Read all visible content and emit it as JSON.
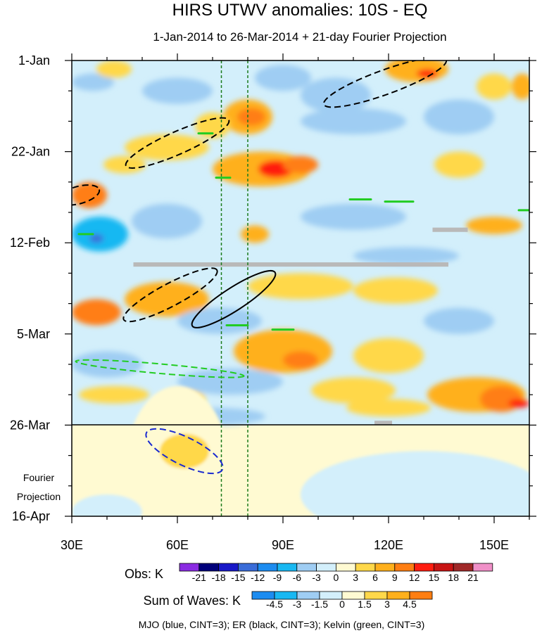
{
  "chart_data": {
    "type": "heatmap",
    "title": "HIRS UTWV anomalies: 10S - EQ",
    "subtitle": "1-Jan-2014 to 26-Mar-2014 + 21-day Fourier Projection",
    "x_axis": {
      "range": [
        30,
        160
      ],
      "units": "degrees_east",
      "ticks": [
        30,
        60,
        90,
        120,
        150
      ],
      "tick_labels": [
        "30E",
        "60E",
        "90E",
        "120E",
        "150E"
      ]
    },
    "y_axis": {
      "range_days": [
        0,
        105
      ],
      "reversed": true,
      "ticks_days": [
        0,
        21,
        42,
        63,
        84,
        105
      ],
      "tick_labels": [
        "1-Jan",
        "22-Jan",
        "12-Feb",
        "5-Mar",
        "26-Mar",
        "16-Apr"
      ],
      "projection_start_day": 84,
      "projection_label_line1": "Fourier",
      "projection_label_line2": "Projection"
    },
    "reference_lines_lon": [
      72.5,
      80
    ],
    "obs_colorbar": {
      "label": "Obs: K",
      "levels": [
        -21,
        -18,
        -15,
        -12,
        -9,
        -6,
        -3,
        0,
        3,
        6,
        9,
        12,
        15,
        18,
        21
      ],
      "colors": [
        "#8a2be2",
        "#00007a",
        "#1818c8",
        "#3a6cd8",
        "#1c8cf0",
        "#19b8f2",
        "#9fcdf3",
        "#d3effb",
        "#fffad2",
        "#ffd84a",
        "#ffb01c",
        "#ff7e12",
        "#ff1d10",
        "#c81414",
        "#a02828",
        "#f090c8"
      ]
    },
    "waves_colorbar": {
      "label": "Sum of Waves: K",
      "levels": [
        -4.5,
        -3,
        -1.5,
        0,
        1.5,
        3,
        4.5
      ],
      "colors": [
        "#1c8cf0",
        "#19b8f2",
        "#9fcdf3",
        "#d3effb",
        "#fffad2",
        "#ffd84a",
        "#ffb01c",
        "#ff7e12"
      ]
    },
    "obs_blobs": [
      {
        "lon": 36,
        "day": 5,
        "rlon": 6,
        "rday": 2,
        "value": -6
      },
      {
        "lon": 42,
        "day": 2,
        "rlon": 5,
        "rday": 2,
        "value": 4
      },
      {
        "lon": 60,
        "day": 7,
        "rlon": 10,
        "rday": 3,
        "value": -4
      },
      {
        "lon": 90,
        "day": 4,
        "rlon": 8,
        "rday": 3,
        "value": -4
      },
      {
        "lon": 105,
        "day": 8,
        "rlon": 10,
        "rday": 4,
        "value": -4
      },
      {
        "lon": 128,
        "day": 2,
        "rlon": 9,
        "rday": 3,
        "value": 7
      },
      {
        "lon": 131,
        "day": 3,
        "rlon": 3,
        "rday": 1,
        "value": 13
      },
      {
        "lon": 150,
        "day": 6,
        "rlon": 5,
        "rday": 3,
        "value": 4
      },
      {
        "lon": 158,
        "day": 6,
        "rlon": 3,
        "rday": 3,
        "value": 7
      },
      {
        "lon": 80,
        "day": 13,
        "rlon": 7,
        "rday": 4,
        "value": 6
      },
      {
        "lon": 81,
        "day": 13,
        "rlon": 4,
        "rday": 2,
        "value": 10
      },
      {
        "lon": 70,
        "day": 15,
        "rlon": 5,
        "rday": 3,
        "value": 4
      },
      {
        "lon": 110,
        "day": 14,
        "rlon": 15,
        "rday": 3,
        "value": -4
      },
      {
        "lon": 140,
        "day": 13,
        "rlon": 10,
        "rday": 4,
        "value": -4
      },
      {
        "lon": 57,
        "day": 20,
        "rlon": 12,
        "rday": 3,
        "value": 4
      },
      {
        "lon": 45,
        "day": 24,
        "rlon": 6,
        "rday": 2,
        "value": 4
      },
      {
        "lon": 84,
        "day": 25,
        "rlon": 14,
        "rday": 4,
        "value": 7
      },
      {
        "lon": 88,
        "day": 25,
        "rlon": 5,
        "rday": 2,
        "value": 13
      },
      {
        "lon": 95,
        "day": 24,
        "rlon": 5,
        "rday": 2,
        "value": 10
      },
      {
        "lon": 140,
        "day": 24,
        "rlon": 7,
        "rday": 3,
        "value": 4
      },
      {
        "lon": 35,
        "day": 31,
        "rlon": 5,
        "rday": 3,
        "value": 10
      },
      {
        "lon": 38,
        "day": 40,
        "rlon": 8,
        "rday": 4,
        "value": -9
      },
      {
        "lon": 37,
        "day": 41,
        "rlon": 2,
        "rday": 1,
        "value": -15
      },
      {
        "lon": 57,
        "day": 37,
        "rlon": 10,
        "rday": 4,
        "value": -5
      },
      {
        "lon": 110,
        "day": 36,
        "rlon": 15,
        "rday": 3,
        "value": -4
      },
      {
        "lon": 82,
        "day": 40,
        "rlon": 4,
        "rday": 2,
        "value": 6
      },
      {
        "lon": 150,
        "day": 38,
        "rlon": 8,
        "rday": 2,
        "value": 6
      },
      {
        "lon": 125,
        "day": 45,
        "rlon": 15,
        "rday": 2,
        "value": -4
      },
      {
        "lon": 57,
        "day": 55,
        "rlon": 12,
        "rday": 4,
        "value": 6
      },
      {
        "lon": 37,
        "day": 58,
        "rlon": 7,
        "rday": 3,
        "value": 10
      },
      {
        "lon": 95,
        "day": 52,
        "rlon": 15,
        "rday": 3,
        "value": 5
      },
      {
        "lon": 122,
        "day": 53,
        "rlon": 12,
        "rday": 3,
        "value": 4
      },
      {
        "lon": 72,
        "day": 60,
        "rlon": 12,
        "rday": 3,
        "value": -5
      },
      {
        "lon": 140,
        "day": 60,
        "rlon": 10,
        "rday": 3,
        "value": -4
      },
      {
        "lon": 90,
        "day": 67,
        "rlon": 14,
        "rday": 5,
        "value": 6
      },
      {
        "lon": 95,
        "day": 69,
        "rlon": 5,
        "rday": 2,
        "value": 10
      },
      {
        "lon": 120,
        "day": 68,
        "rlon": 10,
        "rday": 4,
        "value": 4
      },
      {
        "lon": 40,
        "day": 70,
        "rlon": 10,
        "rday": 3,
        "value": -4
      },
      {
        "lon": 75,
        "day": 74,
        "rlon": 15,
        "rday": 3,
        "value": -5
      },
      {
        "lon": 42,
        "day": 77,
        "rlon": 10,
        "rday": 2,
        "value": 5
      },
      {
        "lon": 62,
        "day": 78,
        "rlon": 6,
        "rday": 2,
        "value": 4
      },
      {
        "lon": 110,
        "day": 76,
        "rlon": 12,
        "rday": 3,
        "value": 4
      },
      {
        "lon": 145,
        "day": 77,
        "rlon": 14,
        "rday": 4,
        "value": 6
      },
      {
        "lon": 152,
        "day": 78,
        "rlon": 6,
        "rday": 3,
        "value": 10
      },
      {
        "lon": 157,
        "day": 79,
        "rlon": 3,
        "rday": 1,
        "value": 13
      },
      {
        "lon": 120,
        "day": 80,
        "rlon": 12,
        "rday": 2,
        "value": 4
      },
      {
        "lon": 70,
        "day": 82,
        "rlon": 15,
        "rday": 2,
        "value": -4
      }
    ],
    "missing_bands": [
      {
        "lon1": 47.5,
        "lon2": 137,
        "day": 47
      },
      {
        "lon1": 132.5,
        "lon2": 142.5,
        "day": 39
      },
      {
        "lon1": 116,
        "lon2": 121,
        "day": 83.5
      }
    ],
    "projection_blobs": [
      {
        "lon": 60,
        "day": 95,
        "rlon": 15,
        "rday": 20,
        "value": 0.5
      },
      {
        "lon": 62,
        "day": 90,
        "rlon": 7,
        "rday": 4,
        "value": 2
      },
      {
        "lon": 130,
        "day": 100,
        "rlon": 35,
        "rday": 10,
        "value": -0.5
      },
      {
        "lon": 40,
        "day": 104,
        "rlon": 10,
        "rday": 4,
        "value": -0.5
      }
    ],
    "wave_contours": [
      {
        "wave": "ER",
        "sign": "positive",
        "type": "ellipse",
        "lon": 119,
        "day": 5,
        "rlon": 18.5,
        "rday": 2.8,
        "angle": -20
      },
      {
        "wave": "ER",
        "sign": "positive",
        "type": "ellipse",
        "lon": 60,
        "day": 19,
        "rlon": 16,
        "rday": 2.6,
        "angle": -24
      },
      {
        "wave": "ER",
        "sign": "positive",
        "type": "ellipse",
        "lon": 32,
        "day": 31,
        "rlon": 6,
        "rday": 2,
        "angle": -15
      },
      {
        "wave": "ER",
        "sign": "positive",
        "type": "ellipse",
        "lon": 58,
        "day": 54,
        "rlon": 15,
        "rday": 2.6,
        "angle": -28
      },
      {
        "wave": "ER",
        "sign": "negative",
        "type": "ellipse",
        "lon": 76,
        "day": 55,
        "rlon": 14,
        "rday": 2.6,
        "angle": -33
      },
      {
        "wave": "MJO",
        "sign": "positive",
        "type": "ellipse",
        "lon": 62,
        "day": 90,
        "rlon": 12,
        "rday": 3.2,
        "angle": 26
      },
      {
        "wave": "Kelvin",
        "sign": "positive",
        "type": "ellipse",
        "lon": 55,
        "day": 71,
        "rlon": 24,
        "rday": 1.1,
        "angle": 5
      },
      {
        "wave": "Kelvin",
        "sign": "positive",
        "type": "dash",
        "lon1": 66,
        "lon2": 70,
        "day": 16.8
      },
      {
        "wave": "Kelvin",
        "sign": "positive",
        "type": "dash",
        "lon1": 71,
        "lon2": 75,
        "day": 27
      },
      {
        "wave": "Kelvin",
        "sign": "positive",
        "type": "dash",
        "lon1": 109,
        "lon2": 115,
        "day": 32
      },
      {
        "wave": "Kelvin",
        "sign": "positive",
        "type": "dash",
        "lon1": 119,
        "lon2": 127,
        "day": 32.5
      },
      {
        "wave": "Kelvin",
        "sign": "positive",
        "type": "dash",
        "lon1": 32,
        "lon2": 36,
        "day": 40
      },
      {
        "wave": "Kelvin",
        "sign": "positive",
        "type": "dash",
        "lon1": 157,
        "lon2": 160,
        "day": 34.5
      },
      {
        "wave": "Kelvin",
        "sign": "positive",
        "type": "dash",
        "lon1": 74,
        "lon2": 80,
        "day": 61
      },
      {
        "wave": "Kelvin",
        "sign": "positive",
        "type": "dash",
        "lon1": 87,
        "lon2": 93,
        "day": 62
      }
    ],
    "footer_note": "MJO (blue, CINT=3); ER (black, CINT=3); Kelvin (green, CINT=3)"
  },
  "wave_colors": {
    "MJO": "#1a2ad0",
    "ER": "#000000",
    "Kelvin": "#22cc22"
  },
  "missing_color": "#b9b9b9",
  "reference_line_color": "#1b7a1b"
}
